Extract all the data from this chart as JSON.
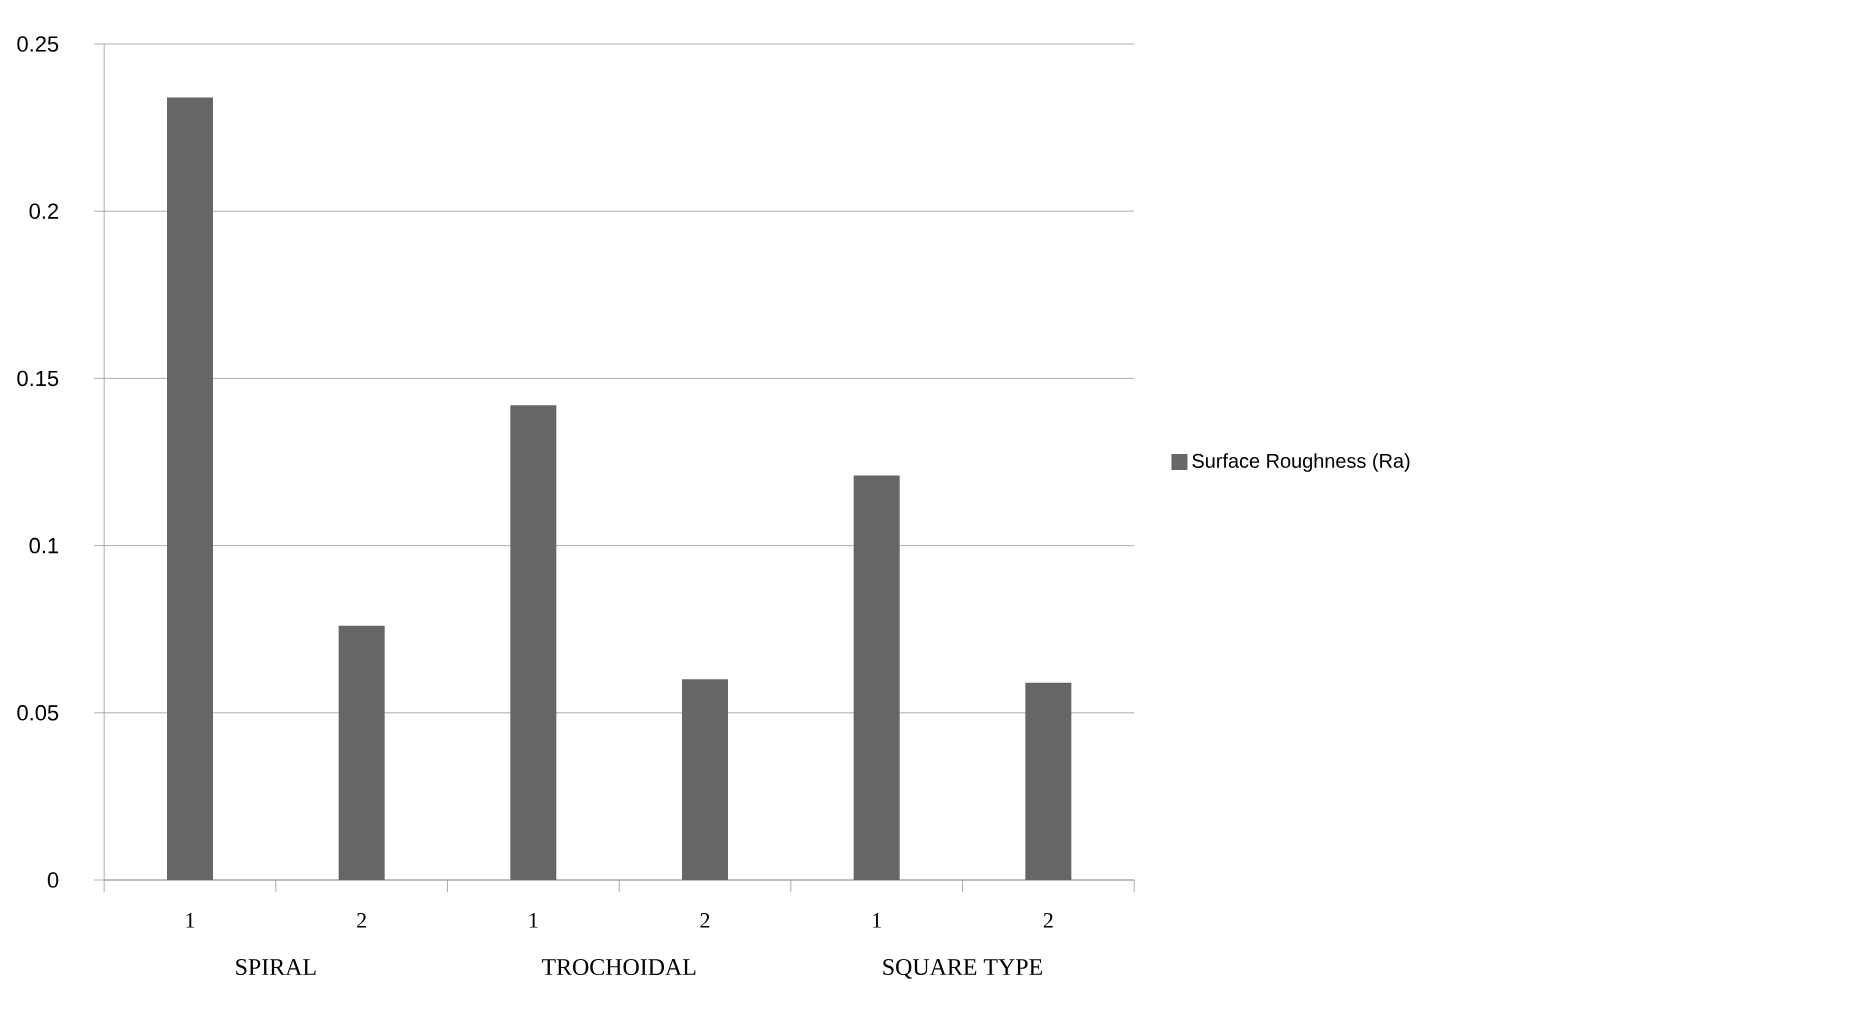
{
  "chart_data": {
    "type": "bar",
    "categories": [
      "1",
      "2",
      "1",
      "2",
      "1",
      "2"
    ],
    "series": [
      {
        "name": "Surface Roughness (Ra)",
        "color": "#666666",
        "values": [
          0.234,
          0.076,
          0.142,
          0.06,
          0.121,
          0.059
        ]
      }
    ],
    "ylim": [
      0,
      0.25
    ],
    "yticks": [
      0,
      0.05,
      0.1,
      0.15,
      0.2,
      0.25
    ],
    "grid": "y",
    "legend": "right",
    "annotations": [
      "SPIRAL",
      "TROCHOIDAL",
      "SQUARE TYPE"
    ]
  }
}
